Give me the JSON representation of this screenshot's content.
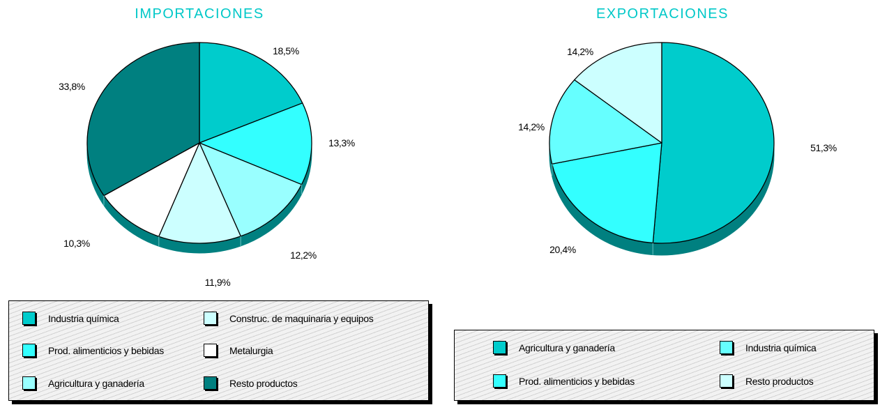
{
  "colors": {
    "industria_quimica_imp": "#00cccc",
    "prod_alimenticios": "#33ffff",
    "agricultura_imp": "#99ffff",
    "construc_maquinaria": "#ccffff",
    "metalurgia": "#ffffff",
    "resto_imp": "#008080",
    "agricultura_exp": "#00cccc",
    "industria_quimica_exp": "#66ffff",
    "resto_exp": "#ccffff",
    "side": "#008080",
    "title": "#00c8c8"
  },
  "chart_data": [
    {
      "type": "pie",
      "title": "IMPORTACIONES",
      "legend_position": "bottom",
      "slices": [
        {
          "name": "Industria química",
          "value": 18.5,
          "label": "18,5%",
          "color_key": "industria_quimica_imp"
        },
        {
          "name": "Prod. alimenticios y bebidas",
          "value": 13.3,
          "label": "13,3%",
          "color_key": "prod_alimenticios"
        },
        {
          "name": "Agricultura y ganadería",
          "value": 12.2,
          "label": "12,2%",
          "color_key": "agricultura_imp"
        },
        {
          "name": "Construc. de maquinaria y equipos",
          "value": 11.9,
          "label": "11,9%",
          "color_key": "construc_maquinaria"
        },
        {
          "name": "Metalurgia",
          "value": 10.3,
          "label": "10,3%",
          "color_key": "metalurgia"
        },
        {
          "name": "Resto productos",
          "value": 33.8,
          "label": "33,8%",
          "color_key": "resto_imp"
        }
      ],
      "legend": [
        {
          "label": "Industria química",
          "color_key": "industria_quimica_imp"
        },
        {
          "label": "Construc. de maquinaria y equipos",
          "color_key": "construc_maquinaria"
        },
        {
          "label": "Prod. alimenticios y bebidas",
          "color_key": "prod_alimenticios"
        },
        {
          "label": "Metalurgia",
          "color_key": "metalurgia"
        },
        {
          "label": "Agricultura y ganadería",
          "color_key": "agricultura_imp"
        },
        {
          "label": "Resto productos",
          "color_key": "resto_imp"
        }
      ]
    },
    {
      "type": "pie",
      "title": "EXPORTACIONES",
      "legend_position": "bottom",
      "slices": [
        {
          "name": "Agricultura y ganadería",
          "value": 51.3,
          "label": "51,3%",
          "color_key": "agricultura_exp"
        },
        {
          "name": "Prod. alimenticios y bebidas",
          "value": 20.4,
          "label": "20,4%",
          "color_key": "prod_alimenticios"
        },
        {
          "name": "Industria química",
          "value": 14.2,
          "label": "14,2%",
          "color_key": "industria_quimica_exp"
        },
        {
          "name": "Resto productos",
          "value": 14.2,
          "label": "14,2%",
          "color_key": "resto_exp"
        }
      ],
      "legend": [
        {
          "label": "Agricultura y ganadería",
          "color_key": "agricultura_exp"
        },
        {
          "label": "Industria química",
          "color_key": "industria_quimica_exp"
        },
        {
          "label": "Prod. alimenticios y bebidas",
          "color_key": "prod_alimenticios"
        },
        {
          "label": "Resto productos",
          "color_key": "resto_exp"
        }
      ]
    }
  ]
}
